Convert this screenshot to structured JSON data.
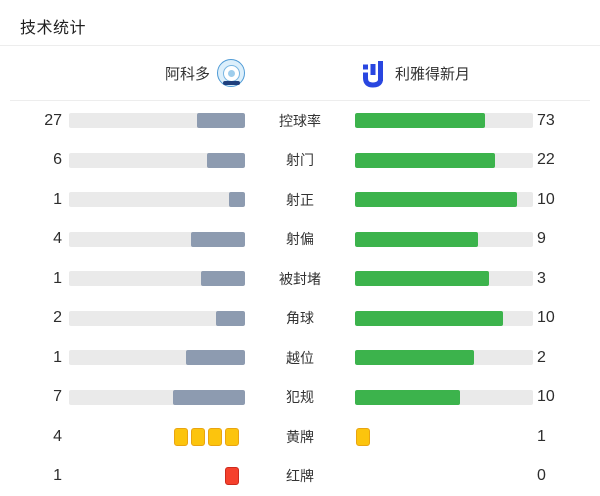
{
  "title": "技术统计",
  "teams": {
    "home": {
      "name": "阿科多"
    },
    "away": {
      "name": "利雅得新月"
    }
  },
  "colors": {
    "home_fill": "#8d9bb0",
    "away_fill": "#3cb34c",
    "track": "#eaeaea",
    "yellow_card": "#fcc40d",
    "red_card": "#f5402c",
    "away_logo_blue": "#2946e0",
    "home_badge_blue": "#4f9bd6"
  },
  "chart_data": {
    "type": "bar",
    "title": "技术统计",
    "categories": [
      "控球率",
      "射门",
      "射正",
      "射偏",
      "被封堵",
      "角球",
      "越位",
      "犯规",
      "黄牌",
      "红牌"
    ],
    "series": [
      {
        "name": "阿科多",
        "values": [
          27,
          6,
          1,
          4,
          1,
          2,
          1,
          7,
          4,
          1
        ]
      },
      {
        "name": "利雅得新月",
        "values": [
          73,
          22,
          10,
          9,
          3,
          10,
          2,
          10,
          1,
          0
        ]
      }
    ],
    "legend_position": "top",
    "grid": false,
    "note": "双向对比条形图，填充比例 = 数值/(主队值+客队值)，黄牌红牌行用卡片图标表示"
  },
  "stats": [
    {
      "label": "控球率",
      "home": 27,
      "away": 73,
      "display": "bar"
    },
    {
      "label": "射门",
      "home": 6,
      "away": 22,
      "display": "bar"
    },
    {
      "label": "射正",
      "home": 1,
      "away": 10,
      "display": "bar"
    },
    {
      "label": "射偏",
      "home": 4,
      "away": 9,
      "display": "bar"
    },
    {
      "label": "被封堵",
      "home": 1,
      "away": 3,
      "display": "bar"
    },
    {
      "label": "角球",
      "home": 2,
      "away": 10,
      "display": "bar"
    },
    {
      "label": "越位",
      "home": 1,
      "away": 2,
      "display": "bar"
    },
    {
      "label": "犯规",
      "home": 7,
      "away": 10,
      "display": "bar"
    },
    {
      "label": "黄牌",
      "home": 4,
      "away": 1,
      "display": "cards",
      "card": "yellow"
    },
    {
      "label": "红牌",
      "home": 1,
      "away": 0,
      "display": "cards",
      "card": "red"
    }
  ]
}
